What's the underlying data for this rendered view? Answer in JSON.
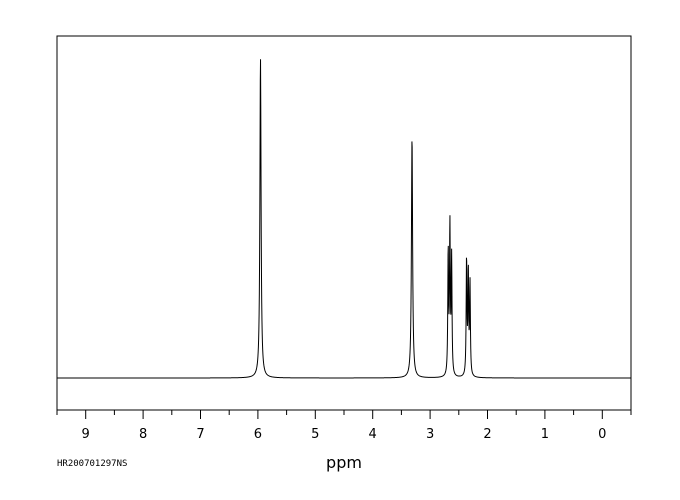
{
  "chart_data": {
    "type": "line",
    "title": "",
    "xlabel": "ppm",
    "ylabel": "",
    "xlim": [
      9.5,
      -0.5
    ],
    "x_reversed": true,
    "ticks": [
      9,
      8,
      7,
      6,
      5,
      4,
      3,
      2,
      1,
      0
    ],
    "minor_step": 0.5,
    "baseline": 0.0,
    "ylim": [
      -0.1,
      1.0
    ],
    "grid": false,
    "legend": "none",
    "line_color": "#000000",
    "peaks": [
      {
        "ppm": 5.955,
        "height": 0.93,
        "width": 0.012
      },
      {
        "ppm": 3.315,
        "height": 0.7,
        "width": 0.012
      },
      {
        "ppm": 2.685,
        "height": 0.36,
        "width": 0.008
      },
      {
        "ppm": 2.655,
        "height": 0.43,
        "width": 0.008
      },
      {
        "ppm": 2.625,
        "height": 0.34,
        "width": 0.008
      },
      {
        "ppm": 2.365,
        "height": 0.34,
        "width": 0.008
      },
      {
        "ppm": 2.335,
        "height": 0.3,
        "width": 0.008
      },
      {
        "ppm": 2.305,
        "height": 0.27,
        "width": 0.008
      }
    ]
  },
  "footer": {
    "spectrum_id": "HR200701297NS"
  }
}
